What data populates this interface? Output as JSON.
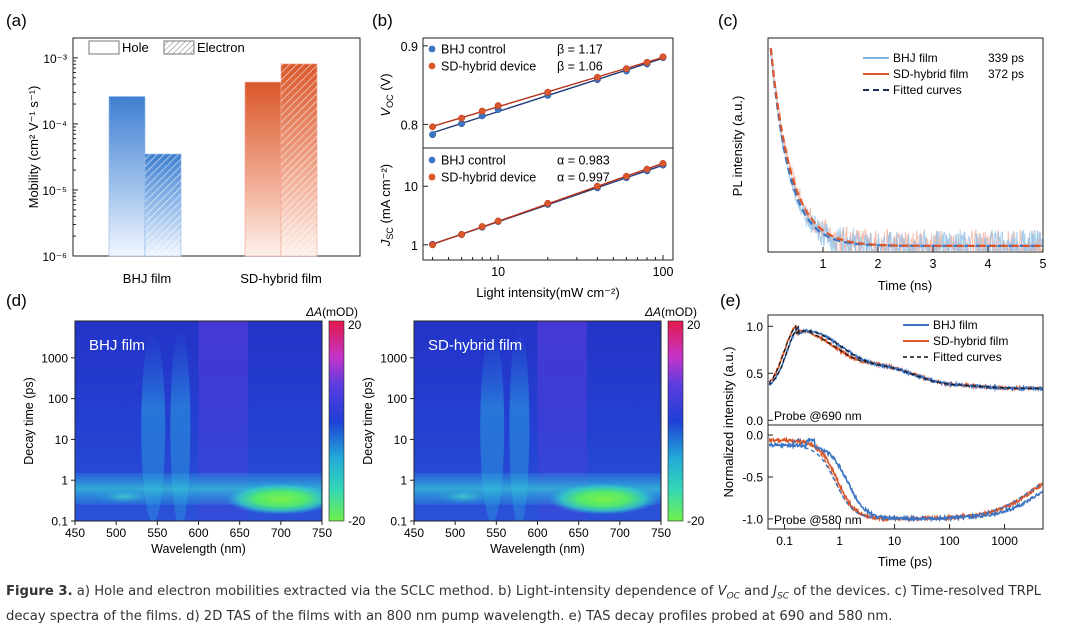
{
  "panel_labels": [
    "(a)",
    "(b)",
    "(c)",
    "(d)",
    "(e)"
  ],
  "caption": {
    "figure": "Figure 3.",
    "part_a": " a) Hole and electron mobilities extracted via the SCLC method. b) Light-intensity dependence of ",
    "voc_main": "V",
    "voc_sub": "OC",
    "and_text": " and ",
    "jsc_main": "J",
    "jsc_sub": "SC",
    "part_b": " of the devices. c) Time-resolved TRPL decay spectra of the films. d) 2D TAS of the films with an 800 nm pump wavelength. e) TAS decay profiles probed at 690 and 580 nm."
  },
  "colors": {
    "blue": "#3b75c4",
    "light_blue": "#8fb6e6",
    "red": "#d9572b",
    "light_red": "#f4a38f",
    "dark": "#1e2d57"
  },
  "chart_data": [
    {
      "id": "a",
      "type": "bar",
      "categories": [
        "BHJ film",
        "SD-hybrid film"
      ],
      "series": [
        {
          "name": "Hole",
          "values": [
            0.00026,
            0.00043
          ]
        },
        {
          "name": "Electron",
          "values": [
            3.5e-05,
            0.00081
          ]
        }
      ],
      "ylabel": "Mobility (cm² V⁻¹ s⁻¹)",
      "yscale": "log",
      "ylim": [
        1e-06,
        0.002
      ],
      "ytick_labels": [
        "10⁻⁶",
        "10⁻⁵",
        "10⁻⁴",
        "10⁻³"
      ],
      "legend_placement": "top"
    },
    {
      "id": "b_top",
      "type": "scatter",
      "xscale": "log",
      "xlim": [
        3.5,
        115
      ],
      "ylim": [
        0.77,
        0.91
      ],
      "ylabel_main": "V",
      "ylabel_sub": "OC",
      "ylabel_unit": " (V)",
      "ytick_labels": [
        "0.8",
        "0.9"
      ],
      "series": [
        {
          "name": "BHJ control",
          "beta": "β = 1.17",
          "x": [
            4,
            6,
            8,
            10,
            20,
            40,
            60,
            80,
            100
          ],
          "y": [
            0.787,
            0.801,
            0.811,
            0.819,
            0.837,
            0.857,
            0.868,
            0.877,
            0.885
          ]
        },
        {
          "name": "SD-hybrid device",
          "beta": "β = 1.06",
          "x": [
            4,
            6,
            8,
            10,
            20,
            40,
            60,
            80,
            100
          ],
          "y": [
            0.797,
            0.808,
            0.817,
            0.824,
            0.841,
            0.86,
            0.871,
            0.879,
            0.886
          ]
        }
      ],
      "legend_placement": "top-left"
    },
    {
      "id": "b_bottom",
      "type": "scatter",
      "xscale": "log",
      "xlim": [
        3.5,
        115
      ],
      "yscale": "log",
      "ylim": [
        0.55,
        45
      ],
      "ytick_labels": [
        "1",
        "10"
      ],
      "xtick_labels": [
        "10",
        "100"
      ],
      "xlabel": "Light intensity(mW cm⁻²)",
      "ylabel_main": "J",
      "ylabel_sub": "SC",
      "ylabel_unit": " (mA cm⁻²)",
      "series": [
        {
          "name": "BHJ control",
          "alpha": "α = 0.983",
          "x": [
            4,
            6,
            8,
            10,
            20,
            40,
            60,
            80,
            100
          ],
          "y": [
            1.02,
            1.5,
            2.0,
            2.5,
            4.9,
            9.4,
            14.0,
            18.3,
            23.0
          ]
        },
        {
          "name": "SD-hybrid device",
          "alpha": "α = 0.997",
          "x": [
            4,
            6,
            8,
            10,
            20,
            40,
            60,
            80,
            100
          ],
          "y": [
            1.0,
            1.5,
            2.05,
            2.55,
            5.1,
            10.0,
            14.8,
            19.6,
            24.5
          ]
        }
      ],
      "legend_placement": "top-left"
    },
    {
      "id": "c",
      "type": "line",
      "xlim": [
        0.05,
        5
      ],
      "ylim": [
        0,
        1.05
      ],
      "xtick_labels": [
        "1",
        "2",
        "3",
        "4",
        "5"
      ],
      "xlabel": "Time (ns)",
      "ylabel": "PL intensity (a.u.)",
      "series": [
        {
          "name": "BHJ film",
          "lifetime": "339 ps",
          "lifetime_ns": 0.339,
          "offset": 0.03
        },
        {
          "name": "SD-hybrid film",
          "lifetime": "372 ps",
          "lifetime_ns": 0.372,
          "offset": 0.03
        },
        {
          "name": "Fitted curves"
        }
      ],
      "legend_placement": "top-right"
    },
    {
      "id": "d",
      "type": "heatmap",
      "panels": [
        {
          "label": "BHJ film",
          "band_nm": 700
        },
        {
          "label": "SD-hybrid film",
          "band_nm": 680
        }
      ],
      "xlim": [
        450,
        750
      ],
      "xtick_labels": [
        "450",
        "500",
        "550",
        "600",
        "650",
        "700",
        "750"
      ],
      "xlabel": "Wavelength (nm)",
      "yscale": "log",
      "ylim": [
        0.1,
        8000
      ],
      "ytick_labels": [
        "0.1",
        "1",
        "10",
        "100",
        "1000"
      ],
      "ylabel": "Decay time (ps)",
      "colorbar_title_main": "ΔA",
      "colorbar_title_unit": "(mOD)",
      "colorbar_range": [
        -20,
        20
      ],
      "colorbar_labels": [
        "20",
        "-20"
      ]
    },
    {
      "id": "e_top",
      "type": "line",
      "annotation": "Probe @690 nm",
      "xscale": "log",
      "xlim": [
        0.05,
        5000
      ],
      "ylim": [
        -0.05,
        1.12
      ],
      "ytick_labels": [
        "0.0",
        "0.5",
        "1.0"
      ],
      "series": [
        {
          "name": "BHJ film",
          "peak_ps": 0.18,
          "decay_ps": 1.1
        },
        {
          "name": "SD-hybrid film",
          "peak_ps": 0.16,
          "decay_ps": 0.75
        },
        {
          "name": "Fitted curves"
        }
      ],
      "legend_placement": "top-right"
    },
    {
      "id": "e_bottom",
      "type": "line",
      "annotation": "Probe @580 nm",
      "xscale": "log",
      "xlim": [
        0.05,
        5000
      ],
      "ylim": [
        -1.12,
        0.12
      ],
      "ytick_labels": [
        "0.0",
        "-0.5",
        "-1.0"
      ],
      "xtick_labels": [
        "0.1",
        "1",
        "10",
        "100",
        "1000"
      ],
      "xlabel": "Time (ps)",
      "shared_ylabel": "Normalized intensity (a.u.)",
      "series": [
        {
          "name": "BHJ film",
          "fall_ps": 1.4,
          "recover_ps": 5000
        },
        {
          "name": "SD-hybrid film",
          "fall_ps": 0.9,
          "recover_ps": 3600
        },
        {
          "name": "Fitted curves"
        }
      ]
    }
  ]
}
